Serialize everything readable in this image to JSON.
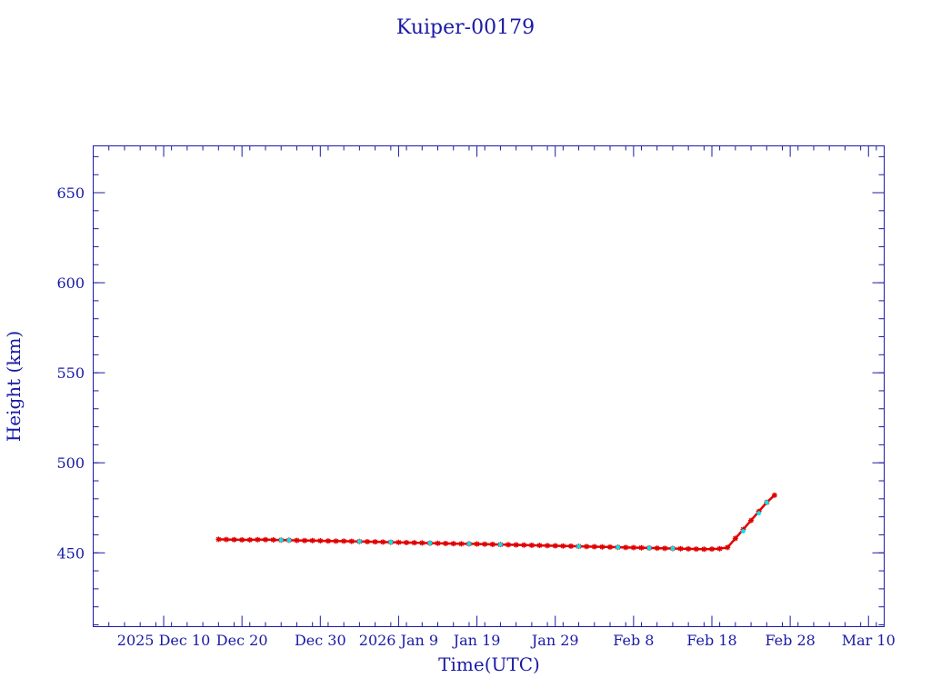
{
  "chart_data": {
    "type": "scatter",
    "title": "Kuiper-00179",
    "xlabel": "Time(UTC)",
    "ylabel": "Height (km)",
    "xlim": [
      "2025-12-01",
      "2026-03-12"
    ],
    "ylim": [
      409,
      676
    ],
    "y_ticks": [
      450,
      500,
      550,
      600,
      650
    ],
    "x_ticks": [
      {
        "date": "2025-12-10",
        "label": "2025 Dec 10"
      },
      {
        "date": "2025-12-20",
        "label": "Dec 20"
      },
      {
        "date": "2025-12-30",
        "label": "Dec 30"
      },
      {
        "date": "2026-01-09",
        "label": "2026 Jan 9"
      },
      {
        "date": "2026-01-19",
        "label": "Jan 19"
      },
      {
        "date": "2026-01-29",
        "label": "Jan 29"
      },
      {
        "date": "2026-02-08",
        "label": "Feb 8"
      },
      {
        "date": "2026-02-18",
        "label": "Feb 18"
      },
      {
        "date": "2026-02-28",
        "label": "Feb 28"
      },
      {
        "date": "2026-03-10",
        "label": "Mar 10"
      }
    ],
    "grid": false,
    "colors": {
      "axis": "#1a1aa6",
      "primary": "#e00000",
      "secondary": "#00e5ee"
    },
    "series": [
      {
        "color": "#e00000",
        "marker": "star",
        "x": [
          "2025-12-17",
          "2025-12-18",
          "2025-12-19",
          "2025-12-20",
          "2025-12-21",
          "2025-12-22",
          "2025-12-23",
          "2025-12-24",
          "2025-12-25",
          "2025-12-26",
          "2025-12-27",
          "2025-12-28",
          "2025-12-29",
          "2025-12-30",
          "2025-12-31",
          "2026-01-01",
          "2026-01-02",
          "2026-01-03",
          "2026-01-04",
          "2026-01-05",
          "2026-01-06",
          "2026-01-07",
          "2026-01-08",
          "2026-01-09",
          "2026-01-10",
          "2026-01-11",
          "2026-01-12",
          "2026-01-13",
          "2026-01-14",
          "2026-01-15",
          "2026-01-16",
          "2026-01-17",
          "2026-01-18",
          "2026-01-19",
          "2026-01-20",
          "2026-01-21",
          "2026-01-22",
          "2026-01-23",
          "2026-01-24",
          "2026-01-25",
          "2026-01-26",
          "2026-01-27",
          "2026-01-28",
          "2026-01-29",
          "2026-01-30",
          "2026-01-31",
          "2026-02-01",
          "2026-02-02",
          "2026-02-03",
          "2026-02-04",
          "2026-02-05",
          "2026-02-06",
          "2026-02-07",
          "2026-02-08",
          "2026-02-09",
          "2026-02-10",
          "2026-02-11",
          "2026-02-12",
          "2026-02-13",
          "2026-02-14",
          "2026-02-15",
          "2026-02-16",
          "2026-02-17",
          "2026-02-18",
          "2026-02-19",
          "2026-02-20",
          "2026-02-21",
          "2026-02-22",
          "2026-02-23",
          "2026-02-24",
          "2026-02-25",
          "2026-02-26"
        ],
        "y": [
          457.5,
          457.4,
          457.3,
          457.2,
          457.2,
          457.3,
          457.3,
          457.2,
          457.1,
          457.0,
          456.9,
          456.8,
          456.8,
          456.7,
          456.6,
          456.5,
          456.5,
          456.4,
          456.3,
          456.2,
          456.1,
          456.0,
          455.9,
          455.8,
          455.7,
          455.6,
          455.5,
          455.4,
          455.3,
          455.2,
          455.1,
          455.0,
          455.0,
          454.9,
          454.8,
          454.7,
          454.6,
          454.5,
          454.4,
          454.3,
          454.2,
          454.1,
          454.0,
          453.9,
          453.8,
          453.7,
          453.6,
          453.5,
          453.4,
          453.3,
          453.2,
          453.1,
          453.0,
          452.9,
          452.8,
          452.7,
          452.6,
          452.5,
          452.4,
          452.3,
          452.2,
          452.1,
          452.0,
          452.1,
          452.3,
          453.0,
          458.0,
          463.0,
          468.0,
          473.0,
          478.0,
          482.0
        ]
      },
      {
        "color": "#00e5ee",
        "marker": "dot",
        "x": [
          "2025-12-25",
          "2025-12-26",
          "2026-01-04",
          "2026-01-08",
          "2026-01-13",
          "2026-01-18",
          "2026-01-22",
          "2026-02-01",
          "2026-02-06",
          "2026-02-10",
          "2026-02-13",
          "2026-02-22",
          "2026-02-24",
          "2026-02-25"
        ],
        "y": [
          457.1,
          457.0,
          456.3,
          455.9,
          455.4,
          455.0,
          454.6,
          453.6,
          453.1,
          452.7,
          452.4,
          462.0,
          472.0,
          478.0
        ]
      }
    ]
  }
}
